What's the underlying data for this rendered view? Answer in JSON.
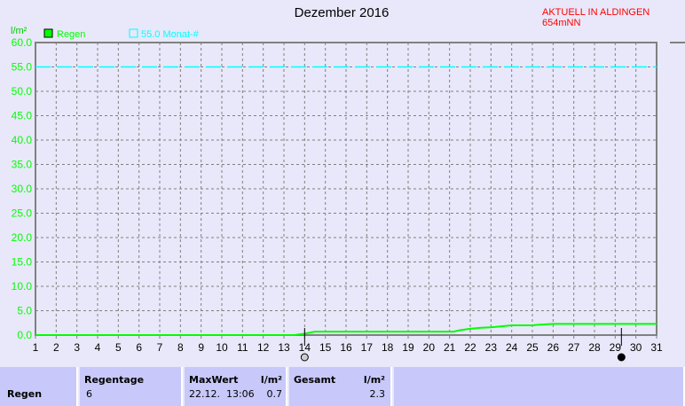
{
  "header": {
    "title": "Dezember 2016",
    "status": "AKTUELL IN ALDINGEN 654mNN"
  },
  "chart_data": {
    "type": "line",
    "title": "Dezember 2016",
    "ylabel": "l/m²",
    "ylim": [
      0,
      60
    ],
    "yticks": [
      "0.0",
      "5.0",
      "10.0",
      "15.0",
      "20.0",
      "25.0",
      "30.0",
      "35.0",
      "40.0",
      "45.0",
      "50.0",
      "55.0",
      "60.0"
    ],
    "xlim": [
      1,
      31
    ],
    "xticks": [
      "1",
      "2",
      "3",
      "4",
      "5",
      "6",
      "7",
      "8",
      "9",
      "10",
      "11",
      "12",
      "13",
      "14",
      "15",
      "16",
      "17",
      "18",
      "19",
      "20",
      "21",
      "22",
      "23",
      "24",
      "25",
      "26",
      "27",
      "28",
      "29",
      "30",
      "31"
    ],
    "grid": true,
    "legend": "top-left",
    "series": [
      {
        "name": "Regen",
        "color": "#00ff00",
        "x": [
          1,
          13.5,
          14,
          14.5,
          21.2,
          21.5,
          22,
          22.5,
          23,
          23.5,
          24,
          25,
          25.2,
          26,
          31
        ],
        "y": [
          0,
          0,
          0.3,
          0.7,
          0.7,
          1.0,
          1.3,
          1.5,
          1.6,
          1.8,
          2.0,
          2.0,
          2.1,
          2.3,
          2.3
        ]
      }
    ],
    "reference_line": {
      "label": "55.0 Monat-#",
      "value": 55.0,
      "color": "#00ffff"
    },
    "moon_markers": [
      {
        "day": 14,
        "phase": "full-moon"
      },
      {
        "day": 29.3,
        "phase": "new-moon"
      }
    ]
  },
  "table": {
    "row_label": "Regen",
    "regentage_label": "Regentage",
    "regentage_value": "6",
    "maxwert_label": "MaxWert",
    "maxwert_unit": "l/m²",
    "maxwert_date": "22.12.  13:06",
    "maxwert_value": "0.7",
    "gesamt_label": "Gesamt",
    "gesamt_unit": "l/m²",
    "gesamt_value": "2.3"
  }
}
